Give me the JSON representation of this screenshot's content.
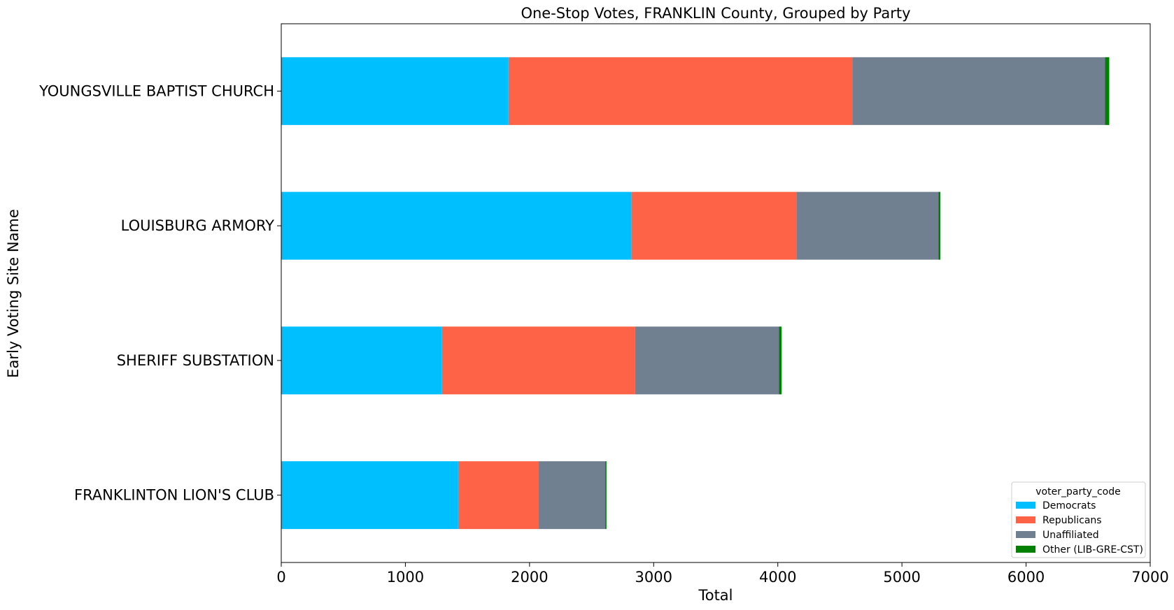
{
  "chart_data": {
    "type": "bar",
    "orientation": "horizontal",
    "stacked": true,
    "title": "One-Stop Votes, FRANKLIN County, Grouped by Party",
    "xlabel": "Total",
    "ylabel": "Early Voting Site Name",
    "xlim": [
      0,
      7000
    ],
    "xticks": [
      0,
      1000,
      2000,
      3000,
      4000,
      5000,
      6000,
      7000
    ],
    "xtick_labels": [
      "0",
      "1000",
      "2000",
      "3000",
      "4000",
      "5000",
      "6000",
      "7000"
    ],
    "grid": false,
    "categories": [
      "YOUNGSVILLE BAPTIST CHURCH",
      "LOUISBURG ARMORY",
      "SHERIFF SUBSTATION",
      "FRANKLINTON LION'S CLUB"
    ],
    "series": [
      {
        "name": "Democrats",
        "color": "#00bfff",
        "values": [
          1830,
          2820,
          1295,
          1425
        ]
      },
      {
        "name": "Republicans",
        "color": "#ff6347",
        "values": [
          2770,
          1330,
          1555,
          645
        ]
      },
      {
        "name": "Unaffiliated",
        "color": "#708090",
        "values": [
          2035,
          1145,
          1160,
          540
        ]
      },
      {
        "name": "Other (LIB-GRE-CST)",
        "color": "#008000",
        "values": [
          35,
          15,
          20,
          10
        ]
      }
    ],
    "legend": {
      "title": "voter_party_code",
      "placement": "lower-right"
    }
  }
}
